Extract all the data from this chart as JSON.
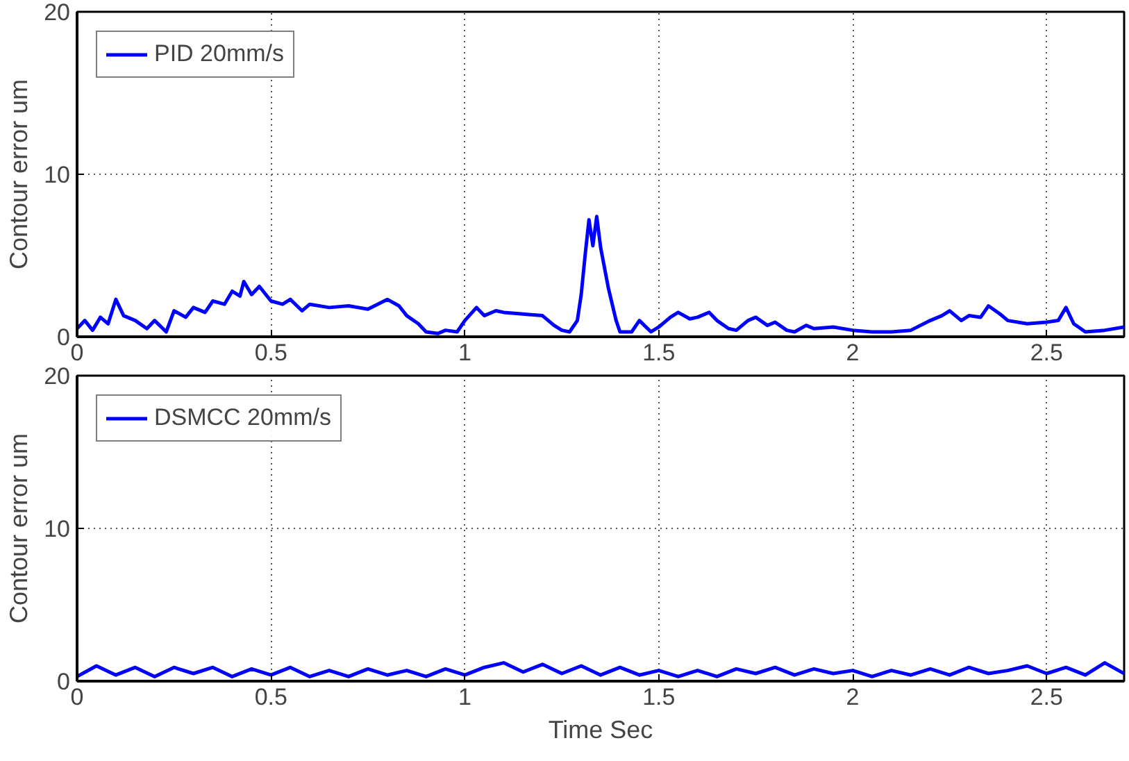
{
  "chart_data": [
    {
      "type": "line",
      "ylabel": "Contour error um",
      "xlim": [
        0,
        2.7
      ],
      "ylim": [
        0,
        20
      ],
      "xticks": [
        0,
        0.5,
        1,
        1.5,
        2,
        2.5
      ],
      "yticks": [
        0,
        10,
        20
      ],
      "grid": true,
      "legend": "top left",
      "series": [
        {
          "name": "PID 20mm/s",
          "color": "#0000ff",
          "x": [
            0,
            0.02,
            0.04,
            0.06,
            0.08,
            0.1,
            0.12,
            0.15,
            0.18,
            0.2,
            0.23,
            0.25,
            0.28,
            0.3,
            0.33,
            0.35,
            0.38,
            0.4,
            0.42,
            0.43,
            0.45,
            0.47,
            0.5,
            0.53,
            0.55,
            0.58,
            0.6,
            0.65,
            0.7,
            0.75,
            0.8,
            0.83,
            0.85,
            0.88,
            0.9,
            0.93,
            0.95,
            0.98,
            1.0,
            1.03,
            1.05,
            1.08,
            1.1,
            1.15,
            1.2,
            1.23,
            1.25,
            1.27,
            1.29,
            1.3,
            1.31,
            1.32,
            1.33,
            1.34,
            1.35,
            1.37,
            1.39,
            1.4,
            1.43,
            1.45,
            1.48,
            1.5,
            1.53,
            1.55,
            1.58,
            1.6,
            1.63,
            1.65,
            1.68,
            1.7,
            1.73,
            1.75,
            1.78,
            1.8,
            1.83,
            1.85,
            1.88,
            1.9,
            1.95,
            2.0,
            2.05,
            2.1,
            2.15,
            2.2,
            2.23,
            2.25,
            2.28,
            2.3,
            2.33,
            2.35,
            2.38,
            2.4,
            2.45,
            2.5,
            2.53,
            2.55,
            2.57,
            2.6,
            2.65,
            2.7
          ],
          "values": [
            0.5,
            1.0,
            0.4,
            1.2,
            0.8,
            2.3,
            1.3,
            1.0,
            0.5,
            1.0,
            0.3,
            1.6,
            1.2,
            1.8,
            1.5,
            2.2,
            2.0,
            2.8,
            2.5,
            3.4,
            2.6,
            3.1,
            2.2,
            2.0,
            2.3,
            1.6,
            2.0,
            1.8,
            1.9,
            1.7,
            2.3,
            1.9,
            1.3,
            0.8,
            0.3,
            0.2,
            0.4,
            0.3,
            1.0,
            1.8,
            1.3,
            1.6,
            1.5,
            1.4,
            1.3,
            0.7,
            0.4,
            0.3,
            1.0,
            2.6,
            5.0,
            7.2,
            5.6,
            7.4,
            5.5,
            3.0,
            1.0,
            0.3,
            0.3,
            1.0,
            0.3,
            0.6,
            1.2,
            1.5,
            1.1,
            1.2,
            1.5,
            1.0,
            0.5,
            0.4,
            1.0,
            1.2,
            0.7,
            0.9,
            0.4,
            0.3,
            0.7,
            0.5,
            0.6,
            0.4,
            0.3,
            0.3,
            0.4,
            1.0,
            1.3,
            1.6,
            1.0,
            1.3,
            1.2,
            1.9,
            1.4,
            1.0,
            0.8,
            0.9,
            1.0,
            1.8,
            0.8,
            0.3,
            0.4,
            0.6
          ]
        }
      ]
    },
    {
      "type": "line",
      "xlabel": "Time Sec",
      "ylabel": "Contour error um",
      "xlim": [
        0,
        2.7
      ],
      "ylim": [
        0,
        20
      ],
      "xticks": [
        0,
        0.5,
        1,
        1.5,
        2,
        2.5
      ],
      "yticks": [
        0,
        10,
        20
      ],
      "grid": true,
      "legend": "top left",
      "series": [
        {
          "name": "DSMCC 20mm/s",
          "color": "#0000ff",
          "x": [
            0,
            0.05,
            0.1,
            0.15,
            0.2,
            0.25,
            0.3,
            0.35,
            0.4,
            0.45,
            0.5,
            0.55,
            0.6,
            0.65,
            0.7,
            0.75,
            0.8,
            0.85,
            0.9,
            0.95,
            1.0,
            1.05,
            1.1,
            1.15,
            1.2,
            1.25,
            1.3,
            1.35,
            1.4,
            1.45,
            1.5,
            1.55,
            1.6,
            1.65,
            1.7,
            1.75,
            1.8,
            1.85,
            1.9,
            1.95,
            2.0,
            2.05,
            2.1,
            2.15,
            2.2,
            2.25,
            2.3,
            2.35,
            2.4,
            2.45,
            2.5,
            2.55,
            2.6,
            2.65,
            2.7
          ],
          "values": [
            0.3,
            1.0,
            0.4,
            0.9,
            0.3,
            0.9,
            0.5,
            0.9,
            0.3,
            0.8,
            0.4,
            0.9,
            0.3,
            0.7,
            0.3,
            0.8,
            0.4,
            0.7,
            0.3,
            0.8,
            0.4,
            0.9,
            1.2,
            0.6,
            1.1,
            0.5,
            1.0,
            0.4,
            0.9,
            0.4,
            0.7,
            0.3,
            0.7,
            0.3,
            0.8,
            0.5,
            0.9,
            0.4,
            0.8,
            0.5,
            0.7,
            0.3,
            0.7,
            0.4,
            0.8,
            0.4,
            0.9,
            0.5,
            0.7,
            1.0,
            0.5,
            0.9,
            0.4,
            1.2,
            0.5
          ]
        }
      ]
    }
  ]
}
